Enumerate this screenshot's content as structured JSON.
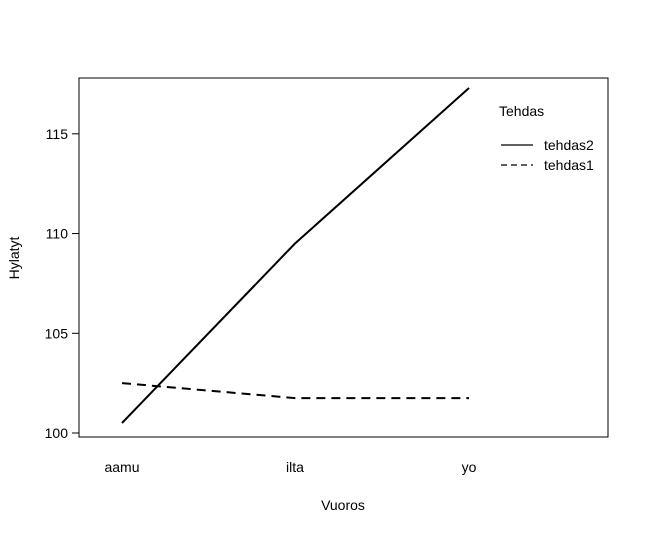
{
  "chart_data": {
    "type": "line",
    "xlabel": "Vuoros",
    "ylabel": "Hylatyt",
    "categories": [
      "aamu",
      "ilta",
      "yo"
    ],
    "ylim": [
      99.8,
      117.8
    ],
    "yticks": [
      100,
      105,
      110,
      115
    ],
    "grid": false,
    "legend": {
      "title": "Tehdas",
      "placement": "top-right",
      "entries": [
        "tehdas2",
        "tehdas1"
      ]
    },
    "series": [
      {
        "name": "tehdas2",
        "line_style": "solid",
        "values": [
          100.5,
          109.5,
          117.3
        ]
      },
      {
        "name": "tehdas1",
        "line_style": "dashed",
        "values": [
          102.5,
          101.75,
          101.75
        ]
      }
    ]
  }
}
